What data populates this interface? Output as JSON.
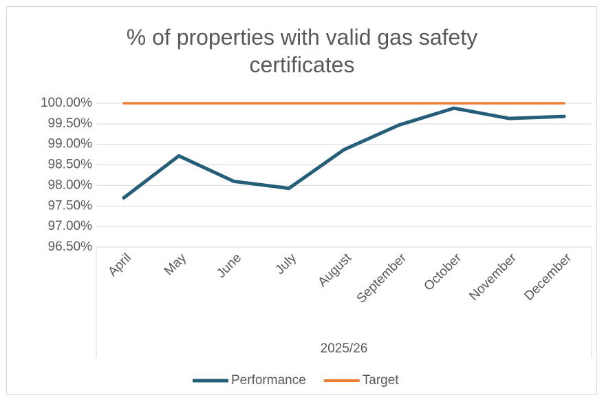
{
  "chart_data": {
    "type": "line",
    "title": "% of properties with valid gas safety certificates",
    "xlabel": "2025/26",
    "categories": [
      "April",
      "May",
      "June",
      "July",
      "August",
      "September",
      "October",
      "November",
      "December"
    ],
    "series": [
      {
        "name": "Performance",
        "color": "#255e79",
        "values": [
          97.7,
          98.72,
          98.1,
          97.93,
          98.87,
          99.47,
          99.88,
          99.63,
          99.68
        ]
      },
      {
        "name": "Target",
        "color": "#ed7d31",
        "values": [
          100,
          100,
          100,
          100,
          100,
          100,
          100,
          100,
          100
        ]
      }
    ],
    "ylim": [
      96.5,
      100
    ],
    "yticks": [
      {
        "value": 96.5,
        "label": "96.50%"
      },
      {
        "value": 97,
        "label": "97.00%"
      },
      {
        "value": 97.5,
        "label": "97.50%"
      },
      {
        "value": 98,
        "label": "98.00%"
      },
      {
        "value": 98.5,
        "label": "98.50%"
      },
      {
        "value": 99,
        "label": "99.00%"
      },
      {
        "value": 99.5,
        "label": "99.50%"
      },
      {
        "value": 100,
        "label": "100.00%"
      }
    ],
    "grid": true,
    "legend": "bottom"
  }
}
